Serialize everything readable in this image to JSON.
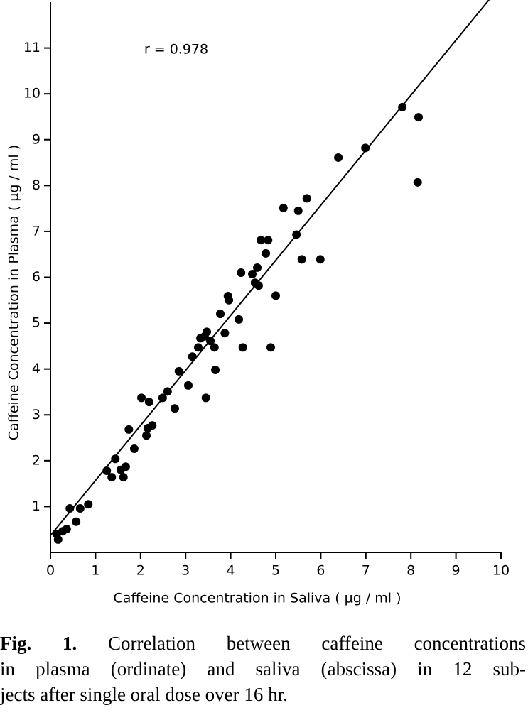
{
  "chart_data": {
    "type": "scatter",
    "xlabel": "Caffeine Concentration in Saliva ( µg / ml )",
    "ylabel": "Caffeine Concentration in Plasma ( µg / ml )",
    "annotation": "r = 0.978",
    "xlim": [
      0,
      10
    ],
    "ylim": [
      0,
      12
    ],
    "xticks": [
      0,
      1,
      2,
      3,
      4,
      5,
      6,
      7,
      8,
      9,
      10
    ],
    "yticks": [
      1,
      2,
      3,
      4,
      5,
      6,
      7,
      8,
      9,
      10,
      11
    ],
    "color": "#000000",
    "x": [
      0.17,
      0.14,
      0.27,
      0.36,
      0.43,
      0.57,
      0.66,
      0.84,
      1.25,
      1.36,
      1.44,
      1.56,
      1.62,
      1.67,
      1.74,
      1.86,
      2.02,
      2.13,
      2.16,
      2.19,
      2.26,
      2.49,
      2.6,
      2.76,
      2.85,
      3.06,
      3.15,
      3.28,
      3.33,
      3.42,
      3.45,
      3.47,
      3.55,
      3.64,
      3.66,
      3.77,
      3.87,
      3.94,
      3.96,
      4.18,
      4.23,
      4.27,
      4.48,
      4.54,
      4.59,
      4.62,
      4.67,
      4.83,
      4.78,
      4.89,
      5.0,
      5.17,
      5.46,
      5.5,
      5.58,
      5.69,
      5.99,
      6.39,
      6.99,
      7.81,
      8.17,
      8.15
    ],
    "y": [
      0.28,
      0.4,
      0.46,
      0.51,
      0.96,
      0.67,
      0.96,
      1.05,
      1.78,
      1.64,
      2.04,
      1.8,
      1.64,
      1.87,
      2.68,
      2.26,
      3.37,
      2.55,
      2.71,
      3.28,
      2.77,
      3.37,
      3.51,
      3.14,
      3.95,
      3.64,
      4.27,
      4.47,
      4.67,
      4.71,
      3.37,
      4.81,
      4.61,
      4.47,
      3.98,
      5.2,
      4.78,
      5.59,
      5.5,
      5.08,
      6.1,
      4.47,
      6.07,
      5.88,
      6.21,
      5.82,
      6.81,
      6.81,
      6.52,
      4.47,
      5.6,
      7.51,
      6.93,
      7.45,
      6.39,
      7.72,
      6.39,
      8.61,
      8.82,
      9.71,
      9.49,
      8.07
    ],
    "fit_line": {
      "x": [
        0,
        9.75
      ],
      "y": [
        0.37,
        12.07
      ]
    },
    "caption": {
      "label": "Fig. 1.",
      "lines": [
        "Correlation between caffeine concentrations",
        "in plasma (ordinate) and saliva (abscissa) in 12 sub-",
        "jects after single oral dose over 16 hr."
      ]
    }
  }
}
